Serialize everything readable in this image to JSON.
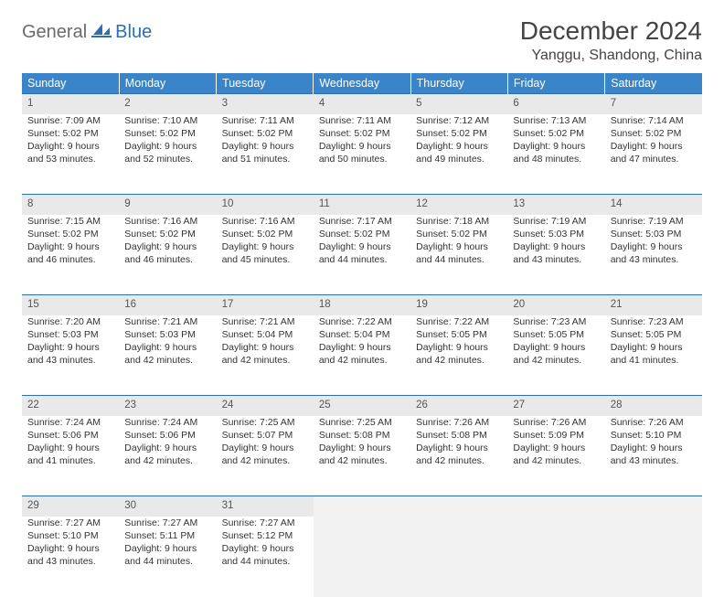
{
  "logo": {
    "general": "General",
    "blue": "Blue"
  },
  "title": "December 2024",
  "location": "Yanggu, Shandong, China",
  "weekday_headers": [
    "Sunday",
    "Monday",
    "Tuesday",
    "Wednesday",
    "Thursday",
    "Friday",
    "Saturday"
  ],
  "header_bg": "#3a85c9",
  "daynum_bg": "#e9e9e9",
  "rule_color": "#2a6fb5",
  "weeks": [
    {
      "nums": [
        "1",
        "2",
        "3",
        "4",
        "5",
        "6",
        "7"
      ],
      "cells": [
        {
          "sunrise": "Sunrise: 7:09 AM",
          "sunset": "Sunset: 5:02 PM",
          "day1": "Daylight: 9 hours",
          "day2": "and 53 minutes."
        },
        {
          "sunrise": "Sunrise: 7:10 AM",
          "sunset": "Sunset: 5:02 PM",
          "day1": "Daylight: 9 hours",
          "day2": "and 52 minutes."
        },
        {
          "sunrise": "Sunrise: 7:11 AM",
          "sunset": "Sunset: 5:02 PM",
          "day1": "Daylight: 9 hours",
          "day2": "and 51 minutes."
        },
        {
          "sunrise": "Sunrise: 7:11 AM",
          "sunset": "Sunset: 5:02 PM",
          "day1": "Daylight: 9 hours",
          "day2": "and 50 minutes."
        },
        {
          "sunrise": "Sunrise: 7:12 AM",
          "sunset": "Sunset: 5:02 PM",
          "day1": "Daylight: 9 hours",
          "day2": "and 49 minutes."
        },
        {
          "sunrise": "Sunrise: 7:13 AM",
          "sunset": "Sunset: 5:02 PM",
          "day1": "Daylight: 9 hours",
          "day2": "and 48 minutes."
        },
        {
          "sunrise": "Sunrise: 7:14 AM",
          "sunset": "Sunset: 5:02 PM",
          "day1": "Daylight: 9 hours",
          "day2": "and 47 minutes."
        }
      ]
    },
    {
      "nums": [
        "8",
        "9",
        "10",
        "11",
        "12",
        "13",
        "14"
      ],
      "cells": [
        {
          "sunrise": "Sunrise: 7:15 AM",
          "sunset": "Sunset: 5:02 PM",
          "day1": "Daylight: 9 hours",
          "day2": "and 46 minutes."
        },
        {
          "sunrise": "Sunrise: 7:16 AM",
          "sunset": "Sunset: 5:02 PM",
          "day1": "Daylight: 9 hours",
          "day2": "and 46 minutes."
        },
        {
          "sunrise": "Sunrise: 7:16 AM",
          "sunset": "Sunset: 5:02 PM",
          "day1": "Daylight: 9 hours",
          "day2": "and 45 minutes."
        },
        {
          "sunrise": "Sunrise: 7:17 AM",
          "sunset": "Sunset: 5:02 PM",
          "day1": "Daylight: 9 hours",
          "day2": "and 44 minutes."
        },
        {
          "sunrise": "Sunrise: 7:18 AM",
          "sunset": "Sunset: 5:02 PM",
          "day1": "Daylight: 9 hours",
          "day2": "and 44 minutes."
        },
        {
          "sunrise": "Sunrise: 7:19 AM",
          "sunset": "Sunset: 5:03 PM",
          "day1": "Daylight: 9 hours",
          "day2": "and 43 minutes."
        },
        {
          "sunrise": "Sunrise: 7:19 AM",
          "sunset": "Sunset: 5:03 PM",
          "day1": "Daylight: 9 hours",
          "day2": "and 43 minutes."
        }
      ]
    },
    {
      "nums": [
        "15",
        "16",
        "17",
        "18",
        "19",
        "20",
        "21"
      ],
      "cells": [
        {
          "sunrise": "Sunrise: 7:20 AM",
          "sunset": "Sunset: 5:03 PM",
          "day1": "Daylight: 9 hours",
          "day2": "and 43 minutes."
        },
        {
          "sunrise": "Sunrise: 7:21 AM",
          "sunset": "Sunset: 5:03 PM",
          "day1": "Daylight: 9 hours",
          "day2": "and 42 minutes."
        },
        {
          "sunrise": "Sunrise: 7:21 AM",
          "sunset": "Sunset: 5:04 PM",
          "day1": "Daylight: 9 hours",
          "day2": "and 42 minutes."
        },
        {
          "sunrise": "Sunrise: 7:22 AM",
          "sunset": "Sunset: 5:04 PM",
          "day1": "Daylight: 9 hours",
          "day2": "and 42 minutes."
        },
        {
          "sunrise": "Sunrise: 7:22 AM",
          "sunset": "Sunset: 5:05 PM",
          "day1": "Daylight: 9 hours",
          "day2": "and 42 minutes."
        },
        {
          "sunrise": "Sunrise: 7:23 AM",
          "sunset": "Sunset: 5:05 PM",
          "day1": "Daylight: 9 hours",
          "day2": "and 42 minutes."
        },
        {
          "sunrise": "Sunrise: 7:23 AM",
          "sunset": "Sunset: 5:05 PM",
          "day1": "Daylight: 9 hours",
          "day2": "and 41 minutes."
        }
      ]
    },
    {
      "nums": [
        "22",
        "23",
        "24",
        "25",
        "26",
        "27",
        "28"
      ],
      "cells": [
        {
          "sunrise": "Sunrise: 7:24 AM",
          "sunset": "Sunset: 5:06 PM",
          "day1": "Daylight: 9 hours",
          "day2": "and 41 minutes."
        },
        {
          "sunrise": "Sunrise: 7:24 AM",
          "sunset": "Sunset: 5:06 PM",
          "day1": "Daylight: 9 hours",
          "day2": "and 42 minutes."
        },
        {
          "sunrise": "Sunrise: 7:25 AM",
          "sunset": "Sunset: 5:07 PM",
          "day1": "Daylight: 9 hours",
          "day2": "and 42 minutes."
        },
        {
          "sunrise": "Sunrise: 7:25 AM",
          "sunset": "Sunset: 5:08 PM",
          "day1": "Daylight: 9 hours",
          "day2": "and 42 minutes."
        },
        {
          "sunrise": "Sunrise: 7:26 AM",
          "sunset": "Sunset: 5:08 PM",
          "day1": "Daylight: 9 hours",
          "day2": "and 42 minutes."
        },
        {
          "sunrise": "Sunrise: 7:26 AM",
          "sunset": "Sunset: 5:09 PM",
          "day1": "Daylight: 9 hours",
          "day2": "and 42 minutes."
        },
        {
          "sunrise": "Sunrise: 7:26 AM",
          "sunset": "Sunset: 5:10 PM",
          "day1": "Daylight: 9 hours",
          "day2": "and 43 minutes."
        }
      ]
    },
    {
      "nums": [
        "29",
        "30",
        "31",
        "",
        "",
        "",
        ""
      ],
      "cells": [
        {
          "sunrise": "Sunrise: 7:27 AM",
          "sunset": "Sunset: 5:10 PM",
          "day1": "Daylight: 9 hours",
          "day2": "and 43 minutes."
        },
        {
          "sunrise": "Sunrise: 7:27 AM",
          "sunset": "Sunset: 5:11 PM",
          "day1": "Daylight: 9 hours",
          "day2": "and 44 minutes."
        },
        {
          "sunrise": "Sunrise: 7:27 AM",
          "sunset": "Sunset: 5:12 PM",
          "day1": "Daylight: 9 hours",
          "day2": "and 44 minutes."
        },
        null,
        null,
        null,
        null
      ]
    }
  ]
}
